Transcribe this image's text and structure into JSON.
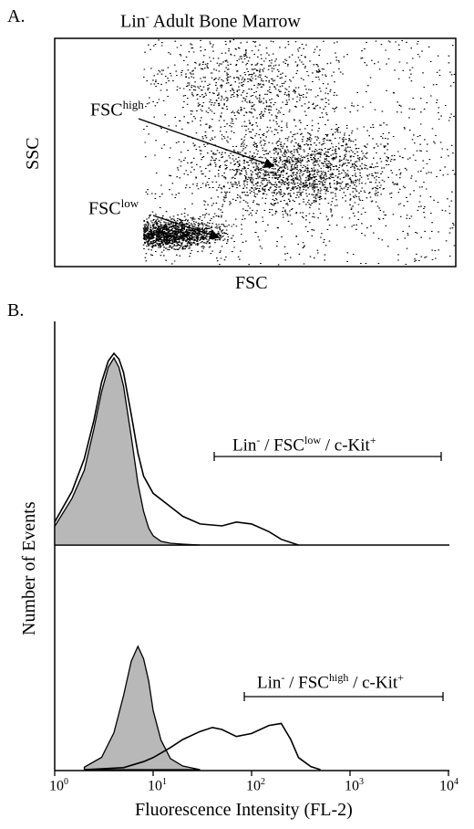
{
  "panel_a": {
    "letter": "A.",
    "title_prefix": "Lin",
    "title_sup": "-",
    "title_rest": " Adult Bone Marrow",
    "xlabel": "FSC",
    "ylabel": "SSC",
    "ann_high_base": "FSC",
    "ann_high_sup": "high",
    "ann_low_base": "FSC",
    "ann_low_sup": "low"
  },
  "panel_b": {
    "letter": "B.",
    "ylabel": "Number of Events",
    "xlabel": "Fluorescence Intensity (FL-2)",
    "top_gate": {
      "p1": "Lin",
      "s1": "-",
      "p2": " / FSC",
      "s2": "low",
      "p3": " / c-Kit",
      "s3": "+"
    },
    "bottom_gate": {
      "p1": "Lin",
      "s1": "-",
      "p2": " / FSC",
      "s2": "high",
      "p3": " / c-Kit",
      "s3": "+"
    },
    "ticks": [
      {
        "base": "10",
        "exp": "0"
      },
      {
        "base": "10",
        "exp": "1"
      },
      {
        "base": "10",
        "exp": "2"
      },
      {
        "base": "10",
        "exp": "3"
      },
      {
        "base": "10",
        "exp": "4"
      }
    ]
  },
  "chart_data": [
    {
      "type": "scatter",
      "title": "Lin- Adult Bone Marrow",
      "xlabel": "FSC",
      "ylabel": "SSC",
      "populations": [
        {
          "name": "FSChigh",
          "center_x": 0.6,
          "center_y": 0.42,
          "spread_x": 0.12,
          "spread_y": 0.09,
          "density": "high"
        },
        {
          "name": "FSClow",
          "center_x": 0.27,
          "center_y": 0.14,
          "spread_x": 0.06,
          "spread_y": 0.03,
          "density": "high"
        },
        {
          "name": "upper scatter",
          "center_x": 0.47,
          "center_y": 0.8,
          "spread_x": 0.1,
          "spread_y": 0.1,
          "density": "medium"
        }
      ],
      "gate_left_fsc": 0.22
    },
    {
      "type": "line",
      "xlabel": "Fluorescence Intensity (FL-2)",
      "ylabel": "Number of Events",
      "x_scale": "log",
      "xlim": [
        1,
        10000
      ],
      "panel": "top",
      "gate_label": "Lin- / FSClow / c-Kit+",
      "gate_range": [
        40,
        8000
      ],
      "series": [
        {
          "role": "control (filled gray)",
          "x": [
            1,
            1.5,
            2,
            2.5,
            3,
            3.5,
            4,
            4.5,
            5,
            6,
            7,
            8,
            9,
            10,
            12,
            15,
            20,
            30
          ],
          "y": [
            0.1,
            0.25,
            0.4,
            0.62,
            0.82,
            0.95,
            1.0,
            0.95,
            0.85,
            0.58,
            0.33,
            0.18,
            0.09,
            0.05,
            0.02,
            0.01,
            0.005,
            0
          ]
        },
        {
          "role": "c-Kit stained (open)",
          "x": [
            1,
            1.5,
            2,
            2.5,
            3,
            3.5,
            4,
            4.5,
            5,
            6,
            7,
            8,
            10,
            15,
            20,
            30,
            50,
            70,
            100,
            150,
            200,
            300
          ],
          "y": [
            0.12,
            0.28,
            0.45,
            0.65,
            0.85,
            0.96,
            1.0,
            0.97,
            0.9,
            0.68,
            0.48,
            0.36,
            0.27,
            0.2,
            0.15,
            0.11,
            0.1,
            0.12,
            0.11,
            0.07,
            0.03,
            0
          ]
        }
      ]
    },
    {
      "type": "line",
      "xlabel": "Fluorescence Intensity (FL-2)",
      "ylabel": "Number of Events",
      "x_scale": "log",
      "xlim": [
        1,
        10000
      ],
      "panel": "bottom",
      "gate_label": "Lin- / FSChigh / c-Kit+",
      "gate_range": [
        80,
        9000
      ],
      "series": [
        {
          "role": "control (filled gray)",
          "x": [
            2,
            3,
            4,
            5,
            6,
            7,
            8,
            9,
            10,
            12,
            15,
            20,
            30
          ],
          "y": [
            0.02,
            0.1,
            0.3,
            0.6,
            0.88,
            1.0,
            0.9,
            0.72,
            0.48,
            0.24,
            0.09,
            0.03,
            0
          ]
        },
        {
          "role": "c-Kit stained (open)",
          "x": [
            2,
            5,
            8,
            10,
            15,
            20,
            30,
            40,
            50,
            70,
            100,
            150,
            200,
            250,
            300,
            400,
            500
          ],
          "y": [
            0,
            0.02,
            0.08,
            0.12,
            0.22,
            0.3,
            0.38,
            0.42,
            0.4,
            0.33,
            0.36,
            0.44,
            0.46,
            0.3,
            0.12,
            0.03,
            0
          ]
        }
      ]
    }
  ]
}
